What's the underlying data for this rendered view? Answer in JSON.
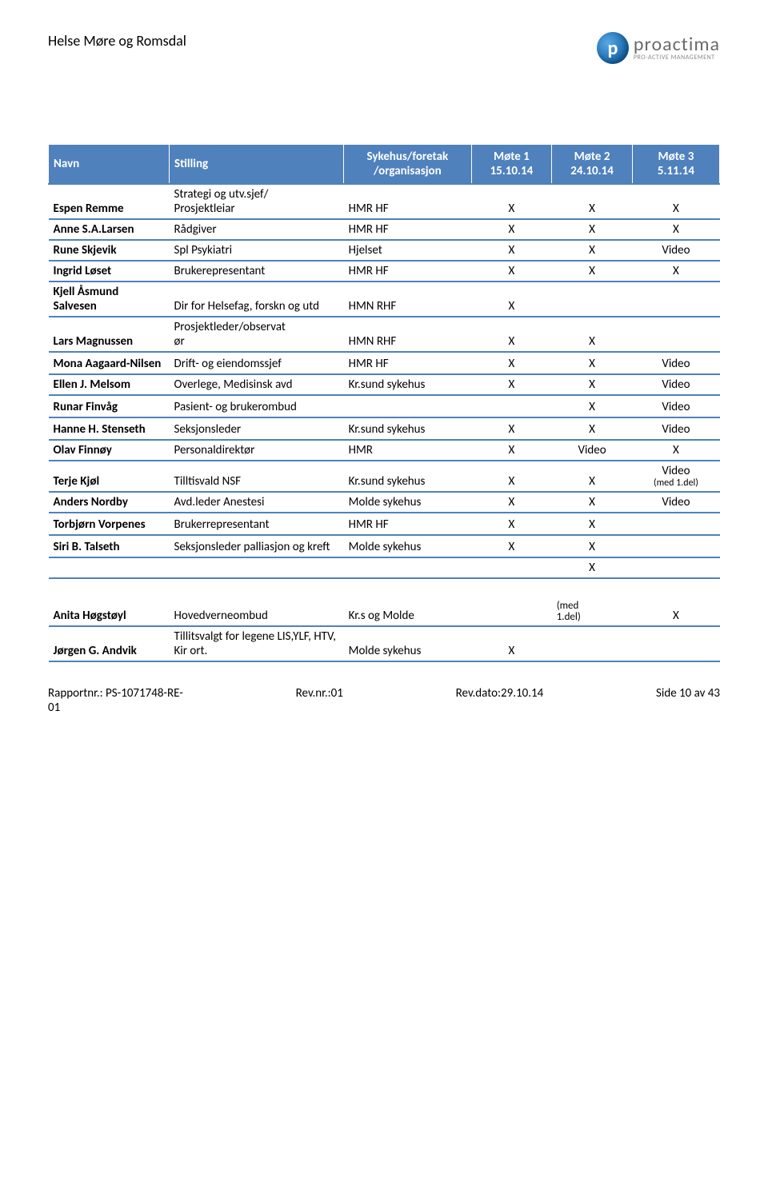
{
  "header": {
    "title": "Helse Møre og Romsdal",
    "logo_letter": "p",
    "logo_name": "proactima",
    "logo_tag": "PRO-ACTIVE MANAGEMENT"
  },
  "table": {
    "columns": {
      "navn": "Navn",
      "stilling": "Stilling",
      "org": "Sykehus/foretak\n/organisasjon",
      "m1": "Møte 1\n15.10.14",
      "m2": "Møte 2\n24.10.14",
      "m3": "Møte 3\n5.11.14"
    },
    "col_widths": [
      "18%",
      "26%",
      "19%",
      "12%",
      "12%",
      "13%"
    ],
    "header_bg": "#4f81bd",
    "header_fg": "#ffffff",
    "row_border": "#4f81bd",
    "rows": [
      {
        "navn": "Espen Remme",
        "stilling": "Strategi og utv.sjef/\nProsjektleiar",
        "org": "HMR HF",
        "m1": "X",
        "m2": "X",
        "m3": "X"
      },
      {
        "navn": "Anne S.A.Larsen",
        "stilling": "Rådgiver",
        "org": "HMR HF",
        "m1": "X",
        "m2": "X",
        "m3": "X"
      },
      {
        "navn": "Rune Skjevik",
        "stilling": "Spl Psykiatri",
        "org": "Hjelset",
        "m1": "X",
        "m2": "X",
        "m3": "Video"
      },
      {
        "navn": "Ingrid Løset",
        "stilling": "Brukerepresentant",
        "org": "HMR HF",
        "m1": "X",
        "m2": "X",
        "m3": "X"
      },
      {
        "navn": "Kjell Åsmund Salvesen",
        "stilling": "Dir for Helsefag, forskn og utd",
        "org": "HMN RHF",
        "m1": "X",
        "m2": "",
        "m3": "",
        "spacer": true
      },
      {
        "navn": "Lars Magnussen",
        "stilling": "Prosjektleder/observat\nør",
        "org": "HMN RHF",
        "m1": "X",
        "m2": "X",
        "m3": "",
        "spacer": true
      },
      {
        "navn": "Mona Aagaard-Nilsen",
        "stilling": "Drift- og eiendomssjef",
        "org": "HMR HF",
        "m1": "X",
        "m2": "X",
        "m3": "Video",
        "spacer": true
      },
      {
        "navn": "Ellen J. Melsom",
        "stilling": "Overlege, Medisinsk avd",
        "org": "Kr.sund sykehus",
        "m1": "X",
        "m2": "X",
        "m3": "Video"
      },
      {
        "navn": "Runar Finvåg",
        "stilling": "Pasient- og brukerombud",
        "org": "",
        "m1": "",
        "m2": "X",
        "m3": "Video",
        "spacer": true
      },
      {
        "navn": "Hanne H. Stenseth",
        "stilling": "Seksjonsleder",
        "org": "Kr.sund sykehus",
        "m1": "X",
        "m2": "X",
        "m3": "Video",
        "spacer": true
      },
      {
        "navn": "Olav Finnøy",
        "stilling": "Personaldirektør",
        "org": "HMR",
        "m1": "X",
        "m2": "Video",
        "m3": "X"
      },
      {
        "navn": "Terje Kjøl",
        "stilling": "Tilltisvald NSF",
        "org": "Kr.sund sykehus",
        "m1": "X",
        "m2": "X",
        "m3": "Video",
        "m3_note": "(med 1.del)",
        "spacer": true
      },
      {
        "navn": "Anders Nordby",
        "stilling": "Avd.leder Anestesi",
        "org": "Molde sykehus",
        "m1": "X",
        "m2": "X",
        "m3": "Video"
      },
      {
        "navn": "Torbjørn Vorpenes",
        "stilling": "Brukerrepresentant",
        "org": "HMR HF",
        "m1": "X",
        "m2": "X",
        "m3": "",
        "spacer": true
      },
      {
        "navn": "Siri B. Talseth",
        "stilling": "Seksjonsleder palliasjon og kreft",
        "org": "Molde sykehus",
        "m1": "X",
        "m2": "X",
        "m3": "",
        "spacer": true
      },
      {
        "navn": "",
        "stilling": "",
        "org": "",
        "m1": "",
        "m2": "X",
        "m3": ""
      },
      {
        "navn": "Anita Høgstøyl",
        "stilling": "Hovedverneombud",
        "org": "Kr.s og Molde",
        "m1": "",
        "m2": "(med\n1.del)",
        "m2_small": true,
        "m3": "X",
        "tall": true
      },
      {
        "navn": "Jørgen G. Andvik",
        "stilling": "Tillitsvalgt for legene LIS,YLF, HTV, Kir ort.",
        "org": "Molde sykehus",
        "m1": "X",
        "m2": "",
        "m3": "",
        "spacer": true
      }
    ]
  },
  "footer": {
    "left": "Rapportnr.:   PS-1071748-RE-\n01",
    "rev": "Rev.nr.:01",
    "date": "Rev.dato:29.10.14",
    "page": "Side 10 av 43"
  }
}
